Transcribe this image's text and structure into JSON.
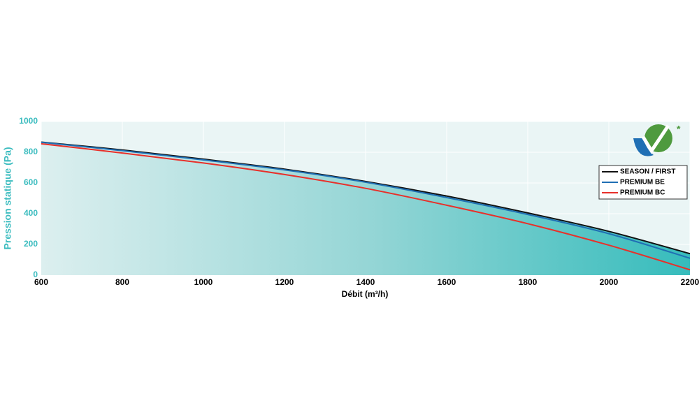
{
  "chart_data": {
    "type": "line",
    "x_label": "Débit (m³/h)",
    "y_label": "Pression statique (Pa)",
    "x": [
      600,
      800,
      1000,
      1200,
      1400,
      1600,
      1800,
      2000,
      2200
    ],
    "series": [
      {
        "name": "SEASON / FIRST",
        "color": "#111111",
        "values": [
          866,
          815,
          755,
          690,
          610,
          515,
          405,
          285,
          140
        ]
      },
      {
        "name": "PREMIUM BE",
        "color": "#1f6fb4",
        "values": [
          865,
          810,
          750,
          685,
          605,
          505,
          395,
          270,
          110
        ]
      },
      {
        "name": "PREMIUM BC",
        "color": "#e8302a",
        "values": [
          855,
          795,
          730,
          655,
          565,
          455,
          335,
          195,
          35
        ]
      }
    ],
    "xlim": [
      600,
      2200
    ],
    "xticks": [
      600,
      800,
      1000,
      1200,
      1400,
      1600,
      1800,
      2000,
      2200
    ],
    "ylim": [
      0,
      1000
    ],
    "yticks": [
      0,
      200,
      400,
      600,
      800,
      1000
    ],
    "grid": true,
    "legend": "right"
  }
}
